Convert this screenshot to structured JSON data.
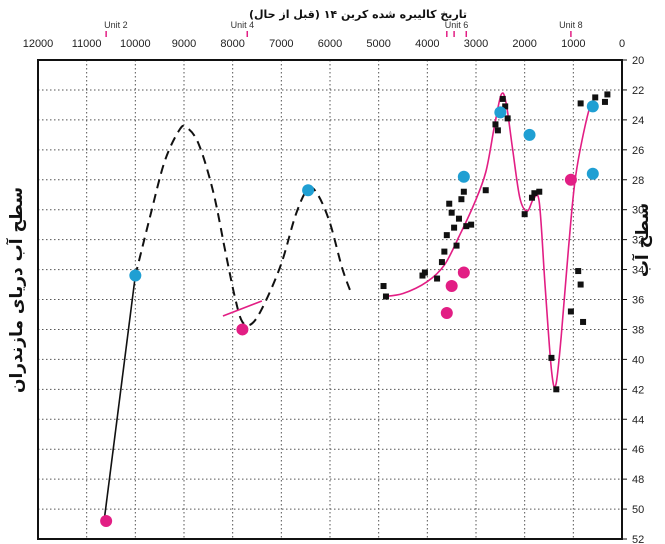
{
  "chart_data": {
    "type": "scatter",
    "title": "تاریخ کالیبره شده کربن ۱۴ (قبل از حال)",
    "xlabel": "تاریخ کالیبره شده کربن ۱۴ (قبل از حال)",
    "ylabel": "سطح آب دریای مازندران",
    "ylabel_right": "سطح آب",
    "x_reversed": true,
    "xlim": [
      12000,
      0
    ],
    "ylim": [
      20,
      52
    ],
    "y_reversed": true,
    "grid": true,
    "x_ticks": [
      "12000",
      "11000",
      "10000",
      "9000",
      "8000",
      "7000",
      "6000",
      "5000",
      "4000",
      "3000",
      "2000",
      "1000",
      "0"
    ],
    "y_ticks": [
      "20",
      "22",
      "24",
      "26",
      "28",
      "30",
      "32",
      "34",
      "36",
      "38",
      "40",
      "42",
      "44",
      "46",
      "48",
      "50",
      "52"
    ],
    "unit_labels": [
      {
        "label": "Unit 2",
        "x": 10400
      },
      {
        "label": "Unit 4",
        "x": 7800
      },
      {
        "label": "Unit 6",
        "x": 3400
      },
      {
        "label": "Unit 8",
        "x": 1050
      }
    ],
    "unit_markers": [
      10600,
      7700,
      3600,
      3450,
      3200,
      1050
    ],
    "series": [
      {
        "marker": "square",
        "color": "#111111",
        "points": [
          [
            4900,
            35.1
          ],
          [
            4850,
            35.8
          ],
          [
            4100,
            34.4
          ],
          [
            4050,
            34.2
          ],
          [
            3800,
            34.6
          ],
          [
            3700,
            33.5
          ],
          [
            3650,
            32.8
          ],
          [
            3600,
            31.7
          ],
          [
            3550,
            29.6
          ],
          [
            3500,
            30.2
          ],
          [
            3450,
            31.2
          ],
          [
            3400,
            32.4
          ],
          [
            3350,
            30.6
          ],
          [
            3300,
            29.3
          ],
          [
            3250,
            28.8
          ],
          [
            3200,
            31.1
          ],
          [
            3100,
            31.0
          ],
          [
            2800,
            28.7
          ],
          [
            2600,
            24.3
          ],
          [
            2550,
            24.7
          ],
          [
            2500,
            23.6
          ],
          [
            2450,
            22.6
          ],
          [
            2400,
            23.1
          ],
          [
            2350,
            23.9
          ],
          [
            2000,
            30.3
          ],
          [
            1850,
            29.2
          ],
          [
            1800,
            28.9
          ],
          [
            1700,
            28.8
          ],
          [
            1450,
            39.9
          ],
          [
            1350,
            42.0
          ],
          [
            1050,
            36.8
          ],
          [
            900,
            34.1
          ],
          [
            850,
            35.0
          ],
          [
            800,
            37.5
          ],
          [
            850,
            22.9
          ],
          [
            550,
            22.5
          ],
          [
            350,
            22.8
          ],
          [
            300,
            22.3
          ]
        ]
      },
      {
        "marker": "circle",
        "color": "#e21e84",
        "points": [
          [
            10600,
            50.8
          ],
          [
            7800,
            38.0
          ],
          [
            3600,
            36.9
          ],
          [
            3500,
            35.1
          ],
          [
            3250,
            34.2
          ],
          [
            1050,
            28.0
          ]
        ]
      },
      {
        "marker": "circle",
        "color": "#1f9fd3",
        "points": [
          [
            10000,
            34.4
          ],
          [
            6450,
            28.7
          ],
          [
            3250,
            27.8
          ],
          [
            2500,
            23.5
          ],
          [
            1900,
            25.0
          ],
          [
            600,
            23.1
          ],
          [
            600,
            27.6
          ]
        ]
      }
    ],
    "curves": [
      {
        "style": "solid",
        "color": "#111111",
        "points": [
          [
            10650,
            51.0
          ],
          [
            10000,
            34.4
          ]
        ]
      },
      {
        "style": "dashed",
        "color": "#111111",
        "points": [
          [
            10000,
            34.4
          ],
          [
            9700,
            30.5
          ],
          [
            9400,
            26.8
          ],
          [
            9100,
            24.7
          ],
          [
            8950,
            24.5
          ],
          [
            8700,
            25.6
          ],
          [
            8400,
            28.8
          ],
          [
            8150,
            32.8
          ],
          [
            7950,
            35.9
          ],
          [
            7800,
            37.5
          ],
          [
            7600,
            37.6
          ],
          [
            7350,
            36.3
          ],
          [
            7000,
            33.6
          ],
          [
            6700,
            30.3
          ],
          [
            6450,
            28.6
          ],
          [
            6250,
            29.0
          ],
          [
            6000,
            30.9
          ],
          [
            5750,
            33.9
          ],
          [
            5550,
            35.7
          ]
        ]
      },
      {
        "style": "solid",
        "color": "#e21e84",
        "points": [
          [
            8200,
            37.1
          ],
          [
            7400,
            36.1
          ]
        ]
      },
      {
        "style": "solid",
        "color": "#e21e84",
        "points": [
          [
            4900,
            35.8
          ],
          [
            4500,
            35.6
          ],
          [
            4000,
            34.8
          ],
          [
            3650,
            33.7
          ],
          [
            3350,
            31.8
          ],
          [
            3050,
            29.7
          ],
          [
            2800,
            27.5
          ],
          [
            2620,
            24.4
          ],
          [
            2480,
            22.3
          ],
          [
            2380,
            22.9
          ],
          [
            2250,
            25.9
          ],
          [
            2100,
            29.2
          ],
          [
            1950,
            30.1
          ],
          [
            1820,
            29.3
          ],
          [
            1700,
            29.5
          ],
          [
            1580,
            35.1
          ],
          [
            1450,
            40.7
          ],
          [
            1360,
            41.7
          ],
          [
            1250,
            38.5
          ],
          [
            1100,
            32.6
          ],
          [
            950,
            27.7
          ],
          [
            700,
            23.6
          ],
          [
            600,
            23.2
          ]
        ]
      }
    ]
  }
}
